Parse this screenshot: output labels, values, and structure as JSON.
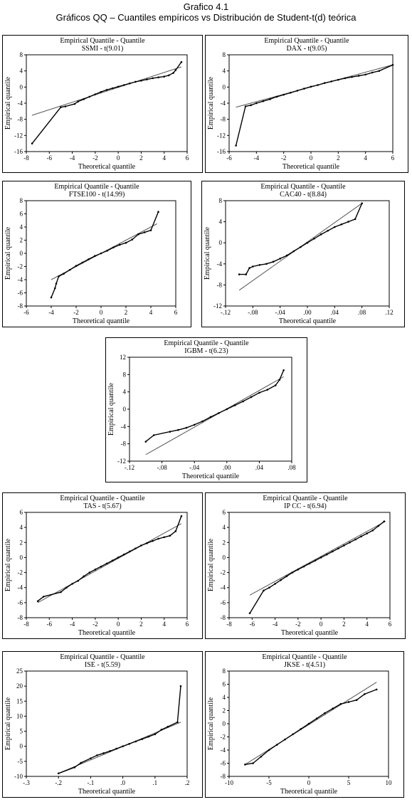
{
  "figure": {
    "title": "Grafico 4.1",
    "subtitle": "Gráficos QQ – Cuantiles empíricos vs Distribución de Student-t(d) teórica"
  },
  "chart_data": [
    {
      "type": "scatter",
      "title": "Empirical Quantile - Quantile",
      "subtitle": "SSMI - t(9.01)",
      "xlabel": "Theoretical quantile",
      "ylabel": "Empirical quantile",
      "xlim": [
        -8,
        6
      ],
      "ylim": [
        -16,
        8
      ],
      "xticks": [
        -8,
        -6,
        -4,
        -2,
        0,
        2,
        4,
        6
      ],
      "xtick_labels": [
        "-8",
        "-6",
        "-4",
        "-2",
        "0",
        "2",
        "4",
        "6"
      ],
      "yticks": [
        -16,
        -12,
        -8,
        -4,
        0,
        4,
        8
      ],
      "ytick_labels": [
        "-16",
        "-12",
        "-8",
        "-4",
        "0",
        "4",
        "8"
      ],
      "line": [
        [
          -7.5,
          -7
        ],
        [
          5.5,
          5
        ]
      ],
      "points": [
        [
          -7.5,
          -14
        ],
        [
          -5,
          -5
        ],
        [
          -4.6,
          -4.8
        ],
        [
          -3.8,
          -4.2
        ],
        [
          -3.5,
          -3.6
        ],
        [
          -3,
          -3
        ],
        [
          -2.5,
          -2.4
        ],
        [
          -2,
          -1.8
        ],
        [
          -1.5,
          -1.2
        ],
        [
          -1,
          -0.7
        ],
        [
          -0.5,
          -0.3
        ],
        [
          0,
          0.1
        ],
        [
          0.5,
          0.5
        ],
        [
          1,
          0.9
        ],
        [
          1.5,
          1.3
        ],
        [
          2,
          1.6
        ],
        [
          2.5,
          1.9
        ],
        [
          3,
          2.2
        ],
        [
          3.5,
          2.4
        ],
        [
          4,
          2.6
        ],
        [
          4.4,
          2.9
        ],
        [
          4.8,
          3.5
        ],
        [
          5,
          4.2
        ],
        [
          5.5,
          6.2
        ]
      ]
    },
    {
      "type": "scatter",
      "title": "Empirical Quantile - Quantile",
      "subtitle": "DAX - t(9.05)",
      "xlabel": "Theoretical quantile",
      "ylabel": "Empirical quantile",
      "xlim": [
        -6,
        6
      ],
      "ylim": [
        -16,
        8
      ],
      "xticks": [
        -6,
        -4,
        -2,
        0,
        2,
        4,
        6
      ],
      "xtick_labels": [
        "-6",
        "-4",
        "-2",
        "0",
        "2",
        "4",
        "6"
      ],
      "yticks": [
        -16,
        -12,
        -8,
        -4,
        0,
        4,
        8
      ],
      "ytick_labels": [
        "-16",
        "-12",
        "-8",
        "-4",
        "0",
        "4",
        "8"
      ],
      "line": [
        [
          -5.5,
          -5
        ],
        [
          6,
          5.5
        ]
      ],
      "points": [
        [
          -5.5,
          -14.5
        ],
        [
          -4.8,
          -4.8
        ],
        [
          -4.4,
          -4.5
        ],
        [
          -4,
          -4
        ],
        [
          -3.5,
          -3.5
        ],
        [
          -3,
          -3
        ],
        [
          -2.5,
          -2.4
        ],
        [
          -2,
          -1.9
        ],
        [
          -1.5,
          -1.4
        ],
        [
          -1,
          -0.9
        ],
        [
          -0.5,
          -0.4
        ],
        [
          0,
          0.1
        ],
        [
          0.5,
          0.5
        ],
        [
          1,
          1
        ],
        [
          1.5,
          1.4
        ],
        [
          2,
          1.8
        ],
        [
          2.5,
          2.2
        ],
        [
          3,
          2.5
        ],
        [
          3.5,
          2.8
        ],
        [
          4,
          3.1
        ],
        [
          4.5,
          3.6
        ],
        [
          5,
          4
        ],
        [
          6,
          5.5
        ]
      ]
    },
    {
      "type": "scatter",
      "title": "Empirical Quantile - Quantile",
      "subtitle": "FTSE100 - t(14.99)",
      "xlabel": "Theoretical quantile",
      "ylabel": "Empirical quantile",
      "xlim": [
        -6,
        6
      ],
      "ylim": [
        -8,
        8
      ],
      "xticks": [
        -6,
        -4,
        -2,
        0,
        2,
        4,
        6
      ],
      "xtick_labels": [
        "-6",
        "-4",
        "-2",
        "0",
        "2",
        "4",
        "6"
      ],
      "yticks": [
        -8,
        -6,
        -4,
        -2,
        0,
        2,
        4,
        6,
        8
      ],
      "ytick_labels": [
        "-8",
        "-6",
        "-4",
        "-2",
        "0",
        "2",
        "4",
        "6",
        "8"
      ],
      "line": [
        [
          -4,
          -4
        ],
        [
          4.5,
          4.5
        ]
      ],
      "points": [
        [
          -4,
          -6.7
        ],
        [
          -3.7,
          -5.3
        ],
        [
          -3.6,
          -4.6
        ],
        [
          -3.4,
          -3.5
        ],
        [
          -3,
          -3.1
        ],
        [
          -2.5,
          -2.5
        ],
        [
          -2,
          -1.9
        ],
        [
          -1.5,
          -1.4
        ],
        [
          -1,
          -0.9
        ],
        [
          -0.5,
          -0.4
        ],
        [
          0,
          0
        ],
        [
          0.5,
          0.4
        ],
        [
          1,
          0.9
        ],
        [
          1.5,
          1.3
        ],
        [
          2,
          1.6
        ],
        [
          2.5,
          2.1
        ],
        [
          3,
          2.9
        ],
        [
          3.5,
          3.2
        ],
        [
          4,
          3.5
        ],
        [
          4.6,
          6.3
        ]
      ]
    },
    {
      "type": "scatter",
      "title": "Empirical Quantile - Quantile",
      "subtitle": "CAC40 - t(8.84)",
      "xlabel": "Theoretical quantile",
      "ylabel": "Empirical quantile",
      "xlim": [
        -0.12,
        0.12
      ],
      "ylim": [
        -12,
        8
      ],
      "xticks": [
        -0.12,
        -0.08,
        -0.04,
        0,
        0.04,
        0.08,
        0.12
      ],
      "xtick_labels": [
        "-.12",
        "-.08",
        "-.04",
        ".00",
        ".04",
        ".08",
        ".12"
      ],
      "yticks": [
        -12,
        -8,
        -4,
        0,
        4,
        8
      ],
      "ytick_labels": [
        "-12",
        "-8",
        "-4",
        "0",
        "4",
        "8"
      ],
      "line": [
        [
          -0.1,
          -9
        ],
        [
          0.08,
          7.5
        ]
      ],
      "points": [
        [
          -0.1,
          -6
        ],
        [
          -0.09,
          -6
        ],
        [
          -0.085,
          -4.8
        ],
        [
          -0.08,
          -4.5
        ],
        [
          -0.07,
          -4.2
        ],
        [
          -0.06,
          -4
        ],
        [
          -0.05,
          -3.6
        ],
        [
          -0.04,
          -3
        ],
        [
          -0.03,
          -2.4
        ],
        [
          -0.02,
          -1.6
        ],
        [
          -0.01,
          -0.8
        ],
        [
          0,
          0
        ],
        [
          0.01,
          0.8
        ],
        [
          0.02,
          1.6
        ],
        [
          0.03,
          2.3
        ],
        [
          0.04,
          3
        ],
        [
          0.05,
          3.5
        ],
        [
          0.06,
          4
        ],
        [
          0.07,
          4.5
        ],
        [
          0.08,
          7.5
        ]
      ]
    },
    {
      "type": "scatter",
      "title": "Empirical Quantile - Quantile",
      "subtitle": "IGBM - t(6.23)",
      "xlabel": "Theoretical quantile",
      "ylabel": "Empirical quantile",
      "xlim": [
        -0.12,
        0.08
      ],
      "ylim": [
        -12,
        12
      ],
      "xticks": [
        -0.12,
        -0.08,
        -0.04,
        0,
        0.04,
        0.08
      ],
      "xtick_labels": [
        "-.12",
        "-.08",
        "-.04",
        ".00",
        ".04",
        ".08"
      ],
      "yticks": [
        -12,
        -8,
        -4,
        0,
        4,
        8,
        12
      ],
      "ytick_labels": [
        "-12",
        "-8",
        "-4",
        "0",
        "4",
        "8",
        "12"
      ],
      "line": [
        [
          -0.1,
          -10.5
        ],
        [
          0.07,
          7.5
        ]
      ],
      "points": [
        [
          -0.1,
          -7.5
        ],
        [
          -0.09,
          -6
        ],
        [
          -0.07,
          -5.2
        ],
        [
          -0.06,
          -4.8
        ],
        [
          -0.05,
          -4.3
        ],
        [
          -0.04,
          -3.6
        ],
        [
          -0.03,
          -2.8
        ],
        [
          -0.02,
          -1.8
        ],
        [
          -0.01,
          -0.9
        ],
        [
          0,
          0
        ],
        [
          0.01,
          0.9
        ],
        [
          0.02,
          1.8
        ],
        [
          0.03,
          2.8
        ],
        [
          0.04,
          3.8
        ],
        [
          0.05,
          4.5
        ],
        [
          0.06,
          5.5
        ],
        [
          0.065,
          6.8
        ],
        [
          0.07,
          9
        ]
      ]
    },
    {
      "type": "scatter",
      "title": "Empirical Quantile - Quantile",
      "subtitle": "TAS - t(5.67)",
      "xlabel": "Theoretical quantile",
      "ylabel": "Empirical quantile",
      "xlim": [
        -8,
        6
      ],
      "ylim": [
        -8,
        6
      ],
      "xticks": [
        -8,
        -6,
        -4,
        -2,
        0,
        2,
        4,
        6
      ],
      "xtick_labels": [
        "-8",
        "-6",
        "-4",
        "-2",
        "0",
        "2",
        "4",
        "6"
      ],
      "yticks": [
        -8,
        -6,
        -4,
        -2,
        0,
        2,
        4,
        6
      ],
      "ytick_labels": [
        "-8",
        "-6",
        "-4",
        "-2",
        "0",
        "2",
        "4",
        "6"
      ],
      "line": [
        [
          -7,
          -6
        ],
        [
          5.5,
          4.5
        ]
      ],
      "points": [
        [
          -7,
          -5.8
        ],
        [
          -6.5,
          -5.2
        ],
        [
          -5,
          -4.6
        ],
        [
          -4.5,
          -4
        ],
        [
          -4,
          -3.5
        ],
        [
          -3.5,
          -3.1
        ],
        [
          -3,
          -2.5
        ],
        [
          -2.5,
          -2
        ],
        [
          -2,
          -1.6
        ],
        [
          -1.5,
          -1.2
        ],
        [
          -1,
          -0.8
        ],
        [
          -0.5,
          -0.4
        ],
        [
          0,
          0
        ],
        [
          0.5,
          0.4
        ],
        [
          1,
          0.8
        ],
        [
          1.5,
          1.2
        ],
        [
          2,
          1.6
        ],
        [
          2.5,
          1.9
        ],
        [
          3,
          2.2
        ],
        [
          3.5,
          2.5
        ],
        [
          4,
          2.7
        ],
        [
          4.5,
          2.9
        ],
        [
          5,
          3.5
        ],
        [
          5.5,
          5.5
        ]
      ]
    },
    {
      "type": "scatter",
      "title": "Empirical Quantile - Quantile",
      "subtitle": "IP CC - t(6.94)",
      "xlabel": "Theoretical quantile",
      "ylabel": "Empirical quantile",
      "xlim": [
        -8,
        6
      ],
      "ylim": [
        -8,
        6
      ],
      "xticks": [
        -8,
        -6,
        -4,
        -2,
        0,
        2,
        4,
        6
      ],
      "xtick_labels": [
        "-8",
        "-6",
        "-4",
        "-2",
        "0",
        "2",
        "4",
        "6"
      ],
      "yticks": [
        -8,
        -6,
        -4,
        -2,
        0,
        2,
        4,
        6
      ],
      "ytick_labels": [
        "-8",
        "-6",
        "-4",
        "-2",
        "0",
        "2",
        "4",
        "6"
      ],
      "line": [
        [
          -6.2,
          -5
        ],
        [
          5.6,
          4.8
        ]
      ],
      "points": [
        [
          -6.2,
          -7.4
        ],
        [
          -5,
          -4.4
        ],
        [
          -4.5,
          -4
        ],
        [
          -4,
          -3.5
        ],
        [
          -3.5,
          -3
        ],
        [
          -3,
          -2.5
        ],
        [
          -2.5,
          -2
        ],
        [
          -2,
          -1.6
        ],
        [
          -1.5,
          -1.2
        ],
        [
          -1,
          -0.8
        ],
        [
          -0.5,
          -0.4
        ],
        [
          0,
          0
        ],
        [
          0.5,
          0.4
        ],
        [
          1,
          0.8
        ],
        [
          1.5,
          1.2
        ],
        [
          2,
          1.6
        ],
        [
          2.5,
          2
        ],
        [
          3,
          2.4
        ],
        [
          3.5,
          2.8
        ],
        [
          4,
          3.2
        ],
        [
          4.5,
          3.6
        ],
        [
          5,
          4.2
        ],
        [
          5.5,
          4.8
        ]
      ]
    },
    {
      "type": "scatter",
      "title": "Empirical Quantile - Quantile",
      "subtitle": "ISE - t(5.59)",
      "xlabel": "Theoretical quantile",
      "ylabel": "Empirical quantile",
      "xlim": [
        -0.3,
        0.2
      ],
      "ylim": [
        -10,
        25
      ],
      "xticks": [
        -0.3,
        -0.2,
        -0.1,
        0,
        0.1,
        0.2
      ],
      "xtick_labels": [
        "-.3",
        "-.2",
        "-.1",
        ".0",
        ".1",
        ".2"
      ],
      "yticks": [
        -10,
        -5,
        0,
        5,
        10,
        15,
        20,
        25
      ],
      "ytick_labels": [
        "-10",
        "-5",
        "0",
        "5",
        "10",
        "15",
        "20",
        "25"
      ],
      "line": [
        [
          -0.2,
          -9
        ],
        [
          0.18,
          8
        ]
      ],
      "points": [
        [
          -0.2,
          -9
        ],
        [
          -0.15,
          -7
        ],
        [
          -0.13,
          -5.5
        ],
        [
          -0.1,
          -4
        ],
        [
          -0.08,
          -3
        ],
        [
          -0.06,
          -2.3
        ],
        [
          -0.04,
          -1.6
        ],
        [
          -0.02,
          -0.8
        ],
        [
          0,
          0
        ],
        [
          0.02,
          0.8
        ],
        [
          0.04,
          1.6
        ],
        [
          0.06,
          2.4
        ],
        [
          0.08,
          3.2
        ],
        [
          0.1,
          4
        ],
        [
          0.12,
          5.5
        ],
        [
          0.14,
          6.5
        ],
        [
          0.17,
          8
        ],
        [
          0.18,
          20
        ]
      ]
    },
    {
      "type": "scatter",
      "title": "Empirical Quantile - Quantile",
      "subtitle": "JKSE - t(4.51)",
      "xlabel": "Theoretical quantile",
      "ylabel": "Empirical quantile",
      "xlim": [
        -10,
        10
      ],
      "ylim": [
        -8,
        8
      ],
      "xticks": [
        -10,
        -5,
        0,
        5,
        10
      ],
      "xtick_labels": [
        "-10",
        "-5",
        "0",
        "5",
        "10"
      ],
      "yticks": [
        -8,
        -6,
        -4,
        -2,
        0,
        2,
        4,
        6,
        8
      ],
      "ytick_labels": [
        "-8",
        "-6",
        "-4",
        "-2",
        "0",
        "2",
        "4",
        "6",
        "8"
      ],
      "line": [
        [
          -8,
          -6.2
        ],
        [
          8.5,
          6.3
        ]
      ],
      "points": [
        [
          -8,
          -6.2
        ],
        [
          -7,
          -6
        ],
        [
          -6,
          -5
        ],
        [
          -5,
          -4
        ],
        [
          -4,
          -3.2
        ],
        [
          -3,
          -2.4
        ],
        [
          -2,
          -1.6
        ],
        [
          -1,
          -0.8
        ],
        [
          0,
          0
        ],
        [
          1,
          0.8
        ],
        [
          2,
          1.6
        ],
        [
          3,
          2.3
        ],
        [
          4,
          3
        ],
        [
          5,
          3.3
        ],
        [
          6,
          3.6
        ],
        [
          7,
          4.5
        ],
        [
          8.5,
          5.2
        ]
      ]
    }
  ]
}
